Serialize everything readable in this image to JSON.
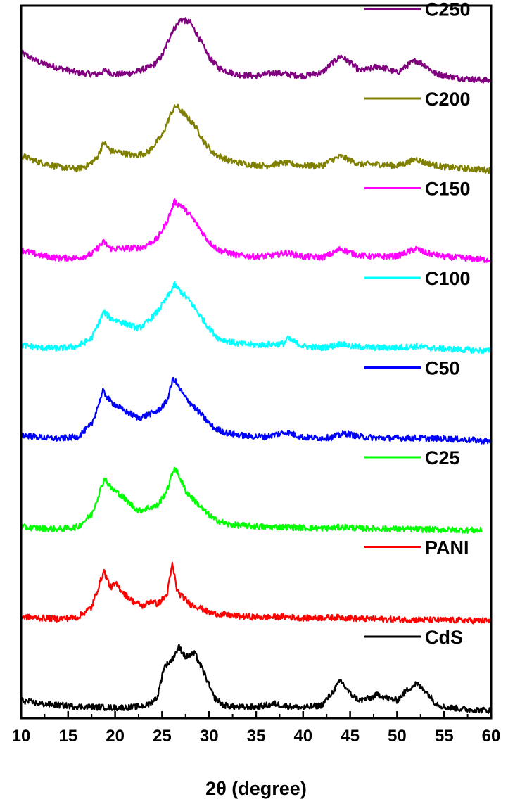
{
  "chart_data": {
    "type": "line",
    "xlabel": "2θ (degree)",
    "ylabel": "",
    "xlim": [
      10,
      60
    ],
    "xticks": [
      10,
      15,
      20,
      25,
      30,
      35,
      40,
      45,
      50,
      55,
      60
    ],
    "grid": false,
    "legend_placement": "right, beside each curve",
    "series": [
      {
        "name": "C250",
        "color": "#800080",
        "offset": 7,
        "points": [
          [
            10,
            0.45
          ],
          [
            12,
            0.3
          ],
          [
            14,
            0.22
          ],
          [
            16,
            0.15
          ],
          [
            18,
            0.12
          ],
          [
            19,
            0.18
          ],
          [
            20,
            0.12
          ],
          [
            22,
            0.15
          ],
          [
            24,
            0.25
          ],
          [
            25,
            0.4
          ],
          [
            26,
            0.75
          ],
          [
            27,
            0.95
          ],
          [
            28,
            0.9
          ],
          [
            29,
            0.65
          ],
          [
            30,
            0.38
          ],
          [
            31,
            0.22
          ],
          [
            33,
            0.12
          ],
          [
            35,
            0.1
          ],
          [
            37,
            0.15
          ],
          [
            38,
            0.13
          ],
          [
            40,
            0.1
          ],
          [
            42,
            0.15
          ],
          [
            43,
            0.28
          ],
          [
            44,
            0.4
          ],
          [
            45,
            0.3
          ],
          [
            46,
            0.18
          ],
          [
            47,
            0.2
          ],
          [
            48,
            0.25
          ],
          [
            49,
            0.2
          ],
          [
            50,
            0.15
          ],
          [
            51,
            0.25
          ],
          [
            52,
            0.33
          ],
          [
            53,
            0.26
          ],
          [
            54,
            0.14
          ],
          [
            56,
            0.08
          ],
          [
            58,
            0.05
          ],
          [
            60,
            0.03
          ]
        ]
      },
      {
        "name": "C200",
        "color": "#808000",
        "offset": 6,
        "points": [
          [
            10,
            0.25
          ],
          [
            12,
            0.15
          ],
          [
            14,
            0.08
          ],
          [
            16,
            0.05
          ],
          [
            17,
            0.1
          ],
          [
            18,
            0.2
          ],
          [
            18.8,
            0.45
          ],
          [
            19.5,
            0.32
          ],
          [
            20.5,
            0.3
          ],
          [
            22,
            0.25
          ],
          [
            23.5,
            0.3
          ],
          [
            25,
            0.55
          ],
          [
            26,
            0.9
          ],
          [
            26.5,
            1.0
          ],
          [
            27.5,
            0.85
          ],
          [
            28.5,
            0.7
          ],
          [
            29.5,
            0.45
          ],
          [
            30.5,
            0.28
          ],
          [
            32,
            0.18
          ],
          [
            34,
            0.12
          ],
          [
            36,
            0.1
          ],
          [
            38,
            0.14
          ],
          [
            40,
            0.1
          ],
          [
            42,
            0.1
          ],
          [
            43,
            0.18
          ],
          [
            44,
            0.24
          ],
          [
            45,
            0.18
          ],
          [
            46,
            0.12
          ],
          [
            48,
            0.12
          ],
          [
            50,
            0.1
          ],
          [
            51,
            0.14
          ],
          [
            52,
            0.2
          ],
          [
            53,
            0.14
          ],
          [
            55,
            0.08
          ],
          [
            58,
            0.05
          ],
          [
            60,
            0.03
          ]
        ]
      },
      {
        "name": "C150",
        "color": "#ff00ff",
        "offset": 5,
        "points": [
          [
            10,
            0.18
          ],
          [
            12,
            0.1
          ],
          [
            14,
            0.06
          ],
          [
            16,
            0.06
          ],
          [
            17.5,
            0.12
          ],
          [
            18.8,
            0.3
          ],
          [
            19.5,
            0.2
          ],
          [
            21,
            0.2
          ],
          [
            23,
            0.22
          ],
          [
            24.5,
            0.35
          ],
          [
            25.5,
            0.6
          ],
          [
            26.3,
            0.9
          ],
          [
            27,
            0.85
          ],
          [
            28,
            0.7
          ],
          [
            29,
            0.5
          ],
          [
            30,
            0.3
          ],
          [
            31,
            0.18
          ],
          [
            33,
            0.1
          ],
          [
            35,
            0.08
          ],
          [
            37,
            0.1
          ],
          [
            38.2,
            0.14
          ],
          [
            40,
            0.08
          ],
          [
            42,
            0.07
          ],
          [
            43,
            0.12
          ],
          [
            44,
            0.2
          ],
          [
            45,
            0.14
          ],
          [
            46,
            0.1
          ],
          [
            48,
            0.08
          ],
          [
            50,
            0.09
          ],
          [
            51,
            0.14
          ],
          [
            52,
            0.2
          ],
          [
            53,
            0.14
          ],
          [
            55,
            0.08
          ],
          [
            58,
            0.05
          ],
          [
            60,
            0.03
          ]
        ]
      },
      {
        "name": "C100",
        "color": "#00ffff",
        "offset": 4,
        "points": [
          [
            10,
            0.1
          ],
          [
            12,
            0.06
          ],
          [
            14,
            0.05
          ],
          [
            16,
            0.08
          ],
          [
            17.5,
            0.2
          ],
          [
            18.8,
            0.6
          ],
          [
            19.5,
            0.5
          ],
          [
            20.5,
            0.45
          ],
          [
            21.5,
            0.4
          ],
          [
            22.5,
            0.35
          ],
          [
            23.5,
            0.45
          ],
          [
            24.5,
            0.6
          ],
          [
            25.5,
            0.8
          ],
          [
            26.3,
            1.0
          ],
          [
            27,
            0.9
          ],
          [
            28,
            0.75
          ],
          [
            29,
            0.55
          ],
          [
            30,
            0.35
          ],
          [
            31,
            0.2
          ],
          [
            33,
            0.12
          ],
          [
            35,
            0.1
          ],
          [
            38,
            0.12
          ],
          [
            38.3,
            0.2
          ],
          [
            40,
            0.08
          ],
          [
            42,
            0.06
          ],
          [
            43,
            0.08
          ],
          [
            44,
            0.12
          ],
          [
            45,
            0.08
          ],
          [
            48,
            0.06
          ],
          [
            50,
            0.06
          ],
          [
            52,
            0.08
          ],
          [
            54,
            0.05
          ],
          [
            57,
            0.03
          ],
          [
            60,
            0.01
          ]
        ]
      },
      {
        "name": "C50",
        "color": "#0000ff",
        "offset": 3,
        "points": [
          [
            10,
            0.1
          ],
          [
            12,
            0.06
          ],
          [
            14,
            0.04
          ],
          [
            16,
            0.07
          ],
          [
            17.5,
            0.25
          ],
          [
            18.7,
            0.75
          ],
          [
            19.5,
            0.6
          ],
          [
            20.5,
            0.5
          ],
          [
            21.5,
            0.42
          ],
          [
            22.5,
            0.35
          ],
          [
            23.5,
            0.4
          ],
          [
            24.5,
            0.45
          ],
          [
            25.5,
            0.6
          ],
          [
            26.2,
            0.95
          ],
          [
            26.8,
            0.8
          ],
          [
            27.5,
            0.65
          ],
          [
            28.5,
            0.5
          ],
          [
            29.5,
            0.35
          ],
          [
            30.5,
            0.2
          ],
          [
            32,
            0.12
          ],
          [
            34,
            0.08
          ],
          [
            36,
            0.07
          ],
          [
            38.2,
            0.14
          ],
          [
            40,
            0.06
          ],
          [
            42,
            0.05
          ],
          [
            43,
            0.06
          ],
          [
            44.5,
            0.12
          ],
          [
            46,
            0.07
          ],
          [
            48,
            0.05
          ],
          [
            52,
            0.05
          ],
          [
            55,
            0.04
          ],
          [
            58,
            0.02
          ],
          [
            60,
            0.0
          ]
        ]
      },
      {
        "name": "C25",
        "color": "#00ff00",
        "offset": 2,
        "points": [
          [
            10,
            0.06
          ],
          [
            12,
            0.04
          ],
          [
            14,
            0.03
          ],
          [
            16,
            0.06
          ],
          [
            17.5,
            0.25
          ],
          [
            18.9,
            0.8
          ],
          [
            19.5,
            0.65
          ],
          [
            20.5,
            0.55
          ],
          [
            21.5,
            0.42
          ],
          [
            22.5,
            0.3
          ],
          [
            23.5,
            0.35
          ],
          [
            24.5,
            0.38
          ],
          [
            25.5,
            0.6
          ],
          [
            26.3,
            0.95
          ],
          [
            26.9,
            0.8
          ],
          [
            27.5,
            0.6
          ],
          [
            28.5,
            0.45
          ],
          [
            29.5,
            0.3
          ],
          [
            30.5,
            0.18
          ],
          [
            32,
            0.1
          ],
          [
            34,
            0.08
          ],
          [
            36,
            0.06
          ],
          [
            38,
            0.06
          ],
          [
            40,
            0.05
          ],
          [
            42,
            0.04
          ],
          [
            44.5,
            0.06
          ],
          [
            46,
            0.04
          ],
          [
            50,
            0.03
          ],
          [
            55,
            0.02
          ],
          [
            59,
            0.01
          ]
        ]
      },
      {
        "name": "PANI",
        "color": "#ff0000",
        "offset": 1,
        "points": [
          [
            10,
            0.06
          ],
          [
            12,
            0.04
          ],
          [
            14,
            0.03
          ],
          [
            16,
            0.05
          ],
          [
            17.5,
            0.2
          ],
          [
            18.8,
            0.75
          ],
          [
            19.5,
            0.5
          ],
          [
            20.1,
            0.55
          ],
          [
            21,
            0.4
          ],
          [
            22,
            0.28
          ],
          [
            23,
            0.22
          ],
          [
            23.8,
            0.3
          ],
          [
            24.5,
            0.25
          ],
          [
            25.5,
            0.38
          ],
          [
            26.1,
            0.85
          ],
          [
            26.6,
            0.45
          ],
          [
            27,
            0.38
          ],
          [
            28,
            0.25
          ],
          [
            29,
            0.2
          ],
          [
            30,
            0.12
          ],
          [
            32,
            0.08
          ],
          [
            34,
            0.06
          ],
          [
            36,
            0.05
          ],
          [
            38,
            0.06
          ],
          [
            40,
            0.04
          ],
          [
            44,
            0.05
          ],
          [
            46,
            0.03
          ],
          [
            50,
            0.02
          ],
          [
            55,
            0.01
          ],
          [
            60,
            0.0
          ]
        ]
      },
      {
        "name": "CdS",
        "color": "#000000",
        "offset": 0,
        "points": [
          [
            10,
            0.15
          ],
          [
            12,
            0.1
          ],
          [
            14,
            0.08
          ],
          [
            16,
            0.06
          ],
          [
            18,
            0.05
          ],
          [
            20,
            0.04
          ],
          [
            22,
            0.05
          ],
          [
            23.5,
            0.08
          ],
          [
            24.5,
            0.2
          ],
          [
            25.2,
            0.65
          ],
          [
            26,
            0.75
          ],
          [
            26.8,
            0.95
          ],
          [
            27.5,
            0.8
          ],
          [
            28.5,
            0.85
          ],
          [
            29.5,
            0.55
          ],
          [
            30.5,
            0.2
          ],
          [
            31.5,
            0.08
          ],
          [
            33,
            0.05
          ],
          [
            35,
            0.05
          ],
          [
            37,
            0.1
          ],
          [
            38,
            0.07
          ],
          [
            40,
            0.04
          ],
          [
            42,
            0.08
          ],
          [
            43,
            0.25
          ],
          [
            44,
            0.45
          ],
          [
            45,
            0.25
          ],
          [
            46,
            0.15
          ],
          [
            47,
            0.18
          ],
          [
            48,
            0.24
          ],
          [
            49,
            0.18
          ],
          [
            50,
            0.15
          ],
          [
            51,
            0.3
          ],
          [
            52,
            0.4
          ],
          [
            53,
            0.3
          ],
          [
            54,
            0.12
          ],
          [
            55,
            0.05
          ],
          [
            57,
            0.02
          ],
          [
            60,
            0.0
          ]
        ]
      }
    ]
  }
}
